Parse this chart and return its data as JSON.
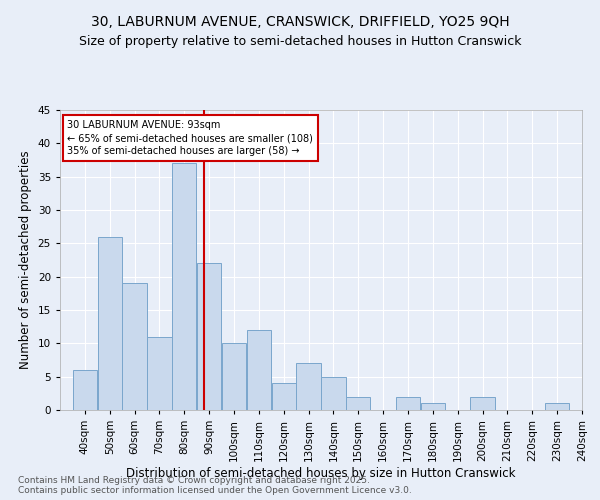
{
  "title": "30, LABURNUM AVENUE, CRANSWICK, DRIFFIELD, YO25 9QH",
  "subtitle": "Size of property relative to semi-detached houses in Hutton Cranswick",
  "xlabel": "Distribution of semi-detached houses by size in Hutton Cranswick",
  "ylabel": "Number of semi-detached properties",
  "bins": [
    40,
    50,
    60,
    70,
    80,
    90,
    100,
    110,
    120,
    130,
    140,
    150,
    160,
    170,
    180,
    190,
    200,
    210,
    220,
    230,
    240
  ],
  "values": [
    6,
    26,
    19,
    11,
    37,
    22,
    10,
    12,
    4,
    7,
    5,
    2,
    0,
    2,
    1,
    0,
    2,
    0,
    0,
    1
  ],
  "bar_color": "#c9d9ed",
  "bar_edge_color": "#7aa6cc",
  "property_line_x": 93,
  "property_sqm": 93,
  "pct_smaller": 65,
  "count_smaller": 108,
  "pct_larger": 35,
  "count_larger": 58,
  "annotation_label": "30 LABURNUM AVENUE: 93sqm",
  "annotation_line1": "← 65% of semi-detached houses are smaller (108)",
  "annotation_line2": "35% of semi-detached houses are larger (58) →",
  "vline_color": "#cc0000",
  "box_edge_color": "#cc0000",
  "ylim": [
    0,
    45
  ],
  "yticks": [
    0,
    5,
    10,
    15,
    20,
    25,
    30,
    35,
    40,
    45
  ],
  "bg_color": "#e8eef8",
  "plot_bg_color": "#e8eef8",
  "footer": "Contains HM Land Registry data © Crown copyright and database right 2025.\nContains public sector information licensed under the Open Government Licence v3.0.",
  "title_fontsize": 10,
  "subtitle_fontsize": 9,
  "xlabel_fontsize": 8.5,
  "ylabel_fontsize": 8.5,
  "tick_fontsize": 7.5,
  "footer_fontsize": 6.5,
  "annotation_fontsize": 7
}
